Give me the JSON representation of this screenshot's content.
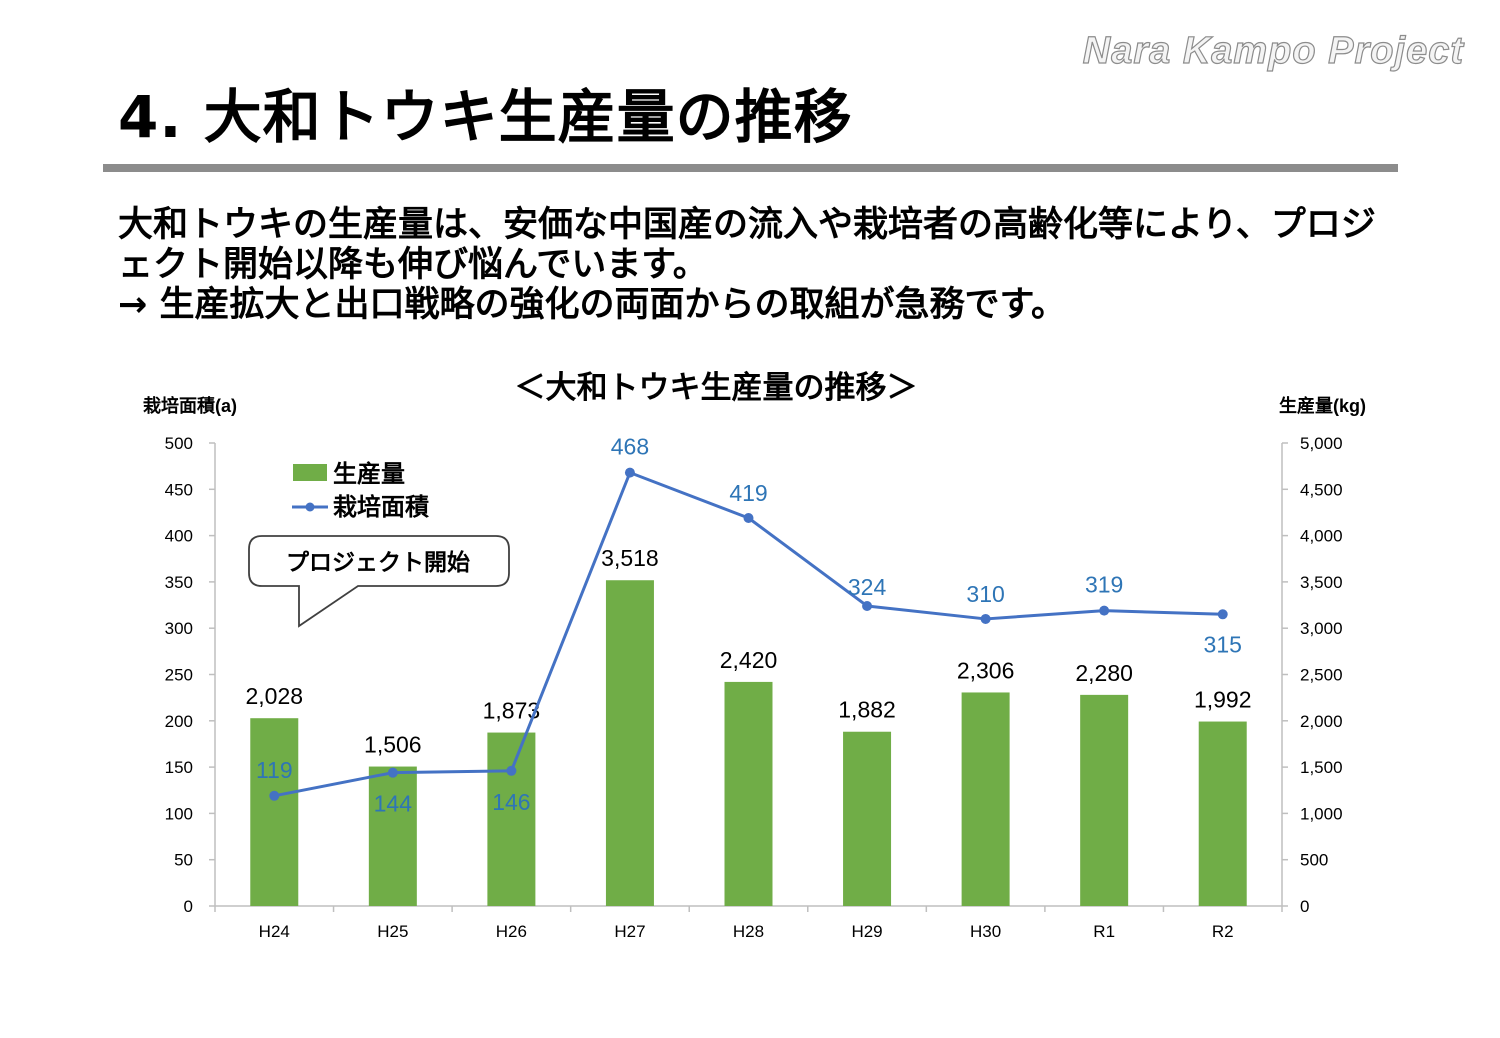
{
  "header": {
    "brand": "Nara Kampo Project",
    "title": "4. 大和トウキ生産量の推移"
  },
  "body": {
    "paragraph": "大和トウキの生産量は、安価な中国産の流入や栽培者の高齢化等により、プロジェクト開始以降も伸び悩んでいます。",
    "conclusion": "→ 生産拡大と出口戦略の強化の両面からの取組が急務です。"
  },
  "colors": {
    "bar": "#70ad47",
    "line": "#4472c4",
    "line_label": "#2e75b6",
    "rule": "#8c8c8c"
  },
  "chart_data": {
    "type": "bar",
    "title": "＜大和トウキ生産量の推移＞",
    "categories": [
      "H24",
      "H25",
      "H26",
      "H27",
      "H28",
      "H29",
      "H30",
      "R1",
      "R2"
    ],
    "series": [
      {
        "name": "生産量",
        "type": "bar",
        "axis": "right",
        "values": [
          2028,
          1506,
          1873,
          3518,
          2420,
          1882,
          2306,
          2280,
          1992
        ],
        "labels": [
          "2,028",
          "1,506",
          "1,873",
          "3,518",
          "2,420",
          "1,882",
          "2,306",
          "2,280",
          "1,992"
        ]
      },
      {
        "name": "栽培面積",
        "type": "line",
        "axis": "left",
        "values": [
          119,
          144,
          146,
          468,
          419,
          324,
          310,
          319,
          315
        ],
        "labels": [
          "119",
          "144",
          "146",
          "468",
          "419",
          "324",
          "310",
          "319",
          "315"
        ]
      }
    ],
    "y_left": {
      "label": "栽培面積(a)",
      "ylim": [
        0,
        500
      ],
      "ticks": [
        "0",
        "50",
        "100",
        "150",
        "200",
        "250",
        "300",
        "350",
        "400",
        "450",
        "500"
      ]
    },
    "y_right": {
      "label": "生産量(kg)",
      "ylim": [
        0,
        5000
      ],
      "ticks": [
        "0",
        "500",
        "1,000",
        "1,500",
        "2,000",
        "2,500",
        "3,000",
        "3,500",
        "4,000",
        "4,500",
        "5,000"
      ]
    },
    "legend_position": "top-left",
    "grid": false,
    "annotation": "プロジェクト開始"
  }
}
